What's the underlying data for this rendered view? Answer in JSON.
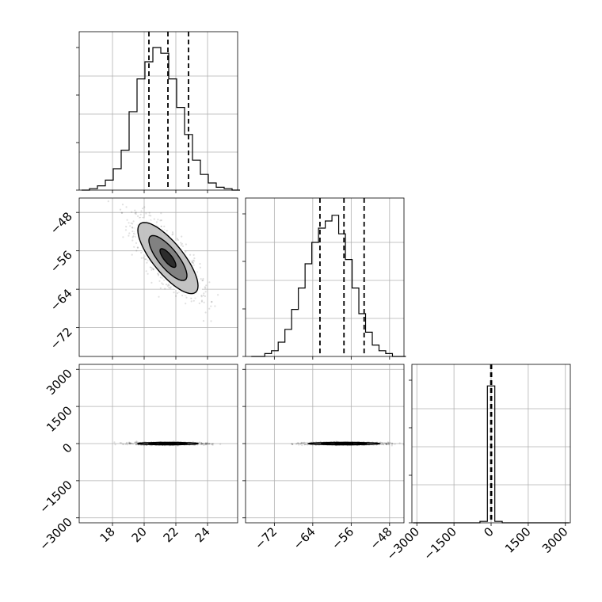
{
  "chart_data": {
    "type": "corner",
    "parameters": 3,
    "grid": true,
    "panels": [
      {
        "id": "hist-p1",
        "type": "histogram",
        "param": 1,
        "xlim": [
          15.9,
          25.9
        ],
        "bins_x": [
          16.3,
          16.8,
          17.3,
          17.8,
          18.3,
          18.8,
          19.3,
          19.8,
          20.3,
          20.8,
          21.3,
          21.8,
          22.3,
          22.8,
          23.3,
          23.8,
          24.3,
          24.8,
          25.3,
          25.8
        ],
        "counts": [
          0,
          0.01,
          0.03,
          0.07,
          0.15,
          0.28,
          0.55,
          0.78,
          0.9,
          1.0,
          0.96,
          0.78,
          0.58,
          0.39,
          0.21,
          0.11,
          0.05,
          0.02,
          0.01,
          0.0
        ],
        "quantiles": [
          20.3,
          21.5,
          22.8
        ]
      },
      {
        "id": "hist-p2",
        "type": "histogram",
        "param": 2,
        "xlim": [
          -78,
          -45
        ],
        "bins_x": [
          -76.1,
          -74.7,
          -73.3,
          -71.9,
          -70.5,
          -69.1,
          -67.7,
          -66.3,
          -64.9,
          -63.5,
          -62.1,
          -60.7,
          -59.3,
          -57.9,
          -56.5,
          -55.1,
          -53.7,
          -52.3,
          -50.9,
          -49.5,
          -48.1,
          -46.7,
          -45.3
        ],
        "counts": [
          0,
          0,
          0.02,
          0.04,
          0.1,
          0.19,
          0.33,
          0.48,
          0.65,
          0.8,
          0.9,
          0.95,
          0.99,
          0.86,
          0.68,
          0.48,
          0.3,
          0.17,
          0.08,
          0.04,
          0.02,
          0.0,
          0.0
        ],
        "quantiles": [
          -62.5,
          -57.5,
          -53.3
        ]
      },
      {
        "id": "hist-p3",
        "type": "histogram",
        "param": 3,
        "xlim": [
          -3200,
          3200
        ],
        "bins_x": [
          -3000,
          -2700,
          -2400,
          -2100,
          -1800,
          -1500,
          -1200,
          -900,
          -600,
          -300,
          0,
          300,
          600,
          900,
          1200,
          1500,
          1800,
          2100,
          2400,
          2700,
          3000
        ],
        "counts": [
          0,
          0,
          0,
          0,
          0,
          0,
          0,
          0,
          0,
          0.01,
          0.96,
          0.01,
          0,
          0,
          0,
          0,
          0,
          0,
          0,
          0,
          0
        ],
        "quantiles": [
          -12,
          3,
          18
        ]
      },
      {
        "id": "scatter-p1-p2",
        "type": "density-scatter",
        "x_param": 1,
        "y_param": 2,
        "xlim": [
          15.9,
          25.9
        ],
        "ylim": [
          -78,
          -45
        ],
        "center": [
          21.5,
          -57.5
        ],
        "sd": [
          1.0,
          3.9
        ],
        "rho": -0.78,
        "contour_levels": [
          0.5,
          1.2,
          1.9
        ]
      },
      {
        "id": "scatter-p1-p3",
        "type": "density-scatter",
        "x_param": 1,
        "y_param": 3,
        "xlim": [
          15.9,
          25.9
        ],
        "ylim": [
          -3200,
          3200
        ],
        "center": [
          21.5,
          0
        ],
        "sd": [
          1.0,
          25
        ],
        "rho": 0,
        "contour_levels": [
          0.5,
          1.2,
          1.9
        ]
      },
      {
        "id": "scatter-p2-p3",
        "type": "density-scatter",
        "x_param": 2,
        "y_param": 3,
        "xlim": [
          -78,
          -45
        ],
        "ylim": [
          -3200,
          3200
        ],
        "center": [
          -57.5,
          0
        ],
        "sd": [
          3.9,
          25
        ],
        "rho": 0,
        "contour_levels": [
          0.5,
          1.2,
          1.9
        ]
      }
    ],
    "x_ticks": {
      "param1": [
        "18",
        "20",
        "22",
        "24"
      ],
      "param2": [
        "−72",
        "−64",
        "−56",
        "−48"
      ],
      "param3": [
        "−3000",
        "−1500",
        "0",
        "1500",
        "3000"
      ]
    },
    "y_ticks": {
      "param2": [
        "−48",
        "−56",
        "−64",
        "−72"
      ],
      "param3": [
        "3000",
        "1500",
        "0",
        "−1500",
        "−3000"
      ]
    },
    "axis_labels": {
      "x": [
        "",
        "",
        ""
      ],
      "y": [
        "",
        "",
        ""
      ]
    }
  }
}
